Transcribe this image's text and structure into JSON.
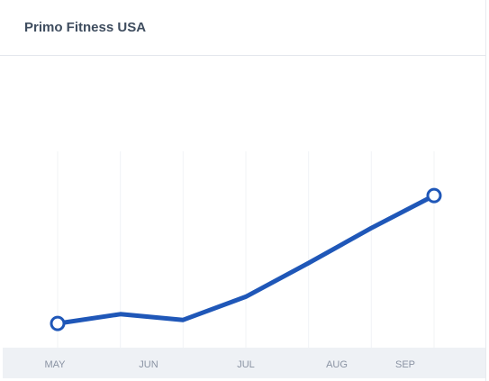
{
  "header": {
    "title": "Primo Fitness USA"
  },
  "colors": {
    "line": "#1f57b8",
    "marker_fill": "#ffffff",
    "axis_band": "#eef1f5",
    "tick_text": "#8a93a3",
    "grid": "#f1f3f6"
  },
  "chart_data": {
    "type": "line",
    "title": "",
    "xlabel": "",
    "ylabel": "",
    "categories": [
      "MAY",
      "JUN",
      "JUL",
      "AUG",
      "SEP"
    ],
    "x": [
      0,
      1,
      2,
      3,
      4,
      5,
      6
    ],
    "y": [
      10,
      18,
      13,
      33,
      62,
      92,
      120
    ],
    "ylim": [
      0,
      220
    ],
    "highlighted_points": [
      0,
      6
    ],
    "grid": true,
    "legend": "none"
  }
}
